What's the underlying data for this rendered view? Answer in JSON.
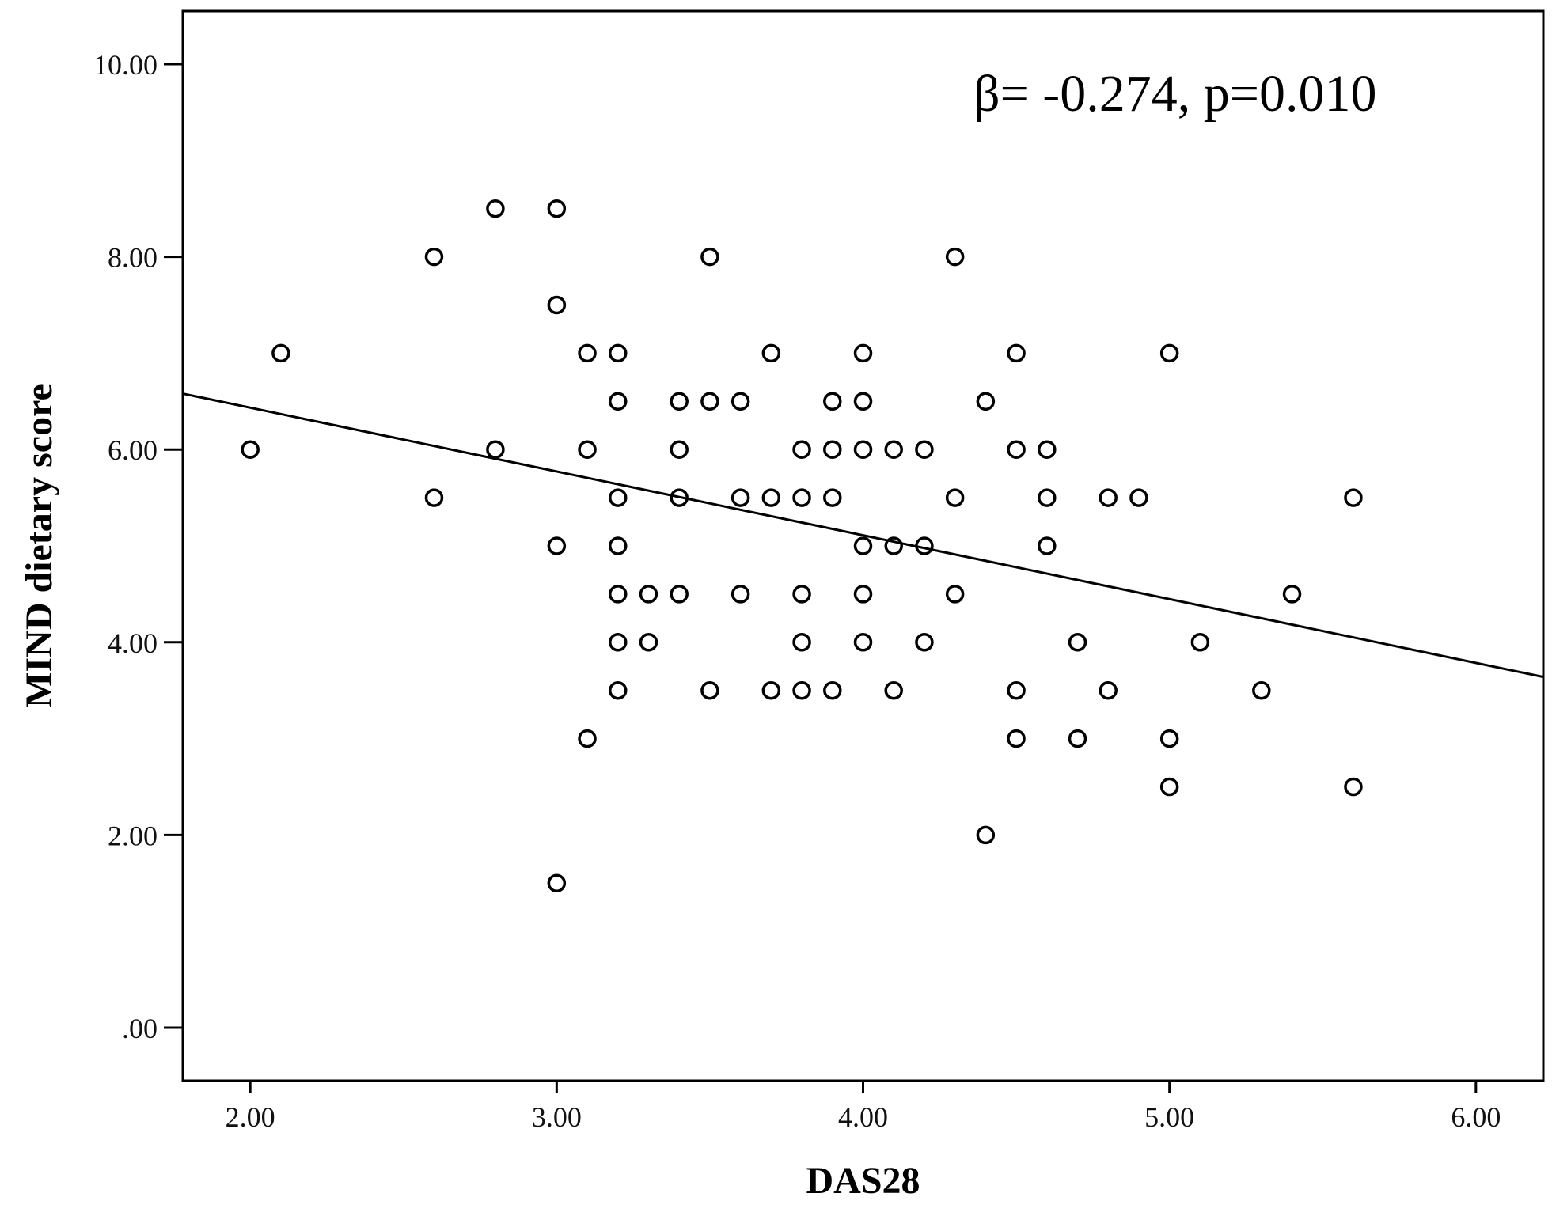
{
  "chart_data": {
    "type": "scatter",
    "title": "",
    "xlabel": "DAS28",
    "ylabel": "MIND dietary score",
    "xlim": [
      1.78,
      6.22
    ],
    "ylim": [
      -0.55,
      10.55
    ],
    "x_ticks": [
      2.0,
      3.0,
      4.0,
      5.0,
      6.0
    ],
    "x_tick_labels": [
      "2.00",
      "3.00",
      "4.00",
      "5.00",
      "6.00"
    ],
    "y_ticks": [
      0,
      2,
      4,
      6,
      8,
      10
    ],
    "y_tick_labels": [
      ".00",
      "2.00",
      "4.00",
      "6.00",
      "8.00",
      "10.00"
    ],
    "grid": false,
    "legend": "none",
    "annotation": "β= -0.274, p=0.010",
    "series": [
      {
        "marker": "open-circle",
        "points": [
          [
            2.0,
            6.0
          ],
          [
            2.1,
            7.0
          ],
          [
            2.6,
            8.0
          ],
          [
            2.6,
            5.5
          ],
          [
            2.8,
            8.5
          ],
          [
            2.8,
            6.0
          ],
          [
            3.0,
            8.5
          ],
          [
            3.0,
            7.5
          ],
          [
            3.0,
            5.0
          ],
          [
            3.0,
            1.5
          ],
          [
            3.1,
            7.0
          ],
          [
            3.1,
            6.0
          ],
          [
            3.1,
            3.0
          ],
          [
            3.2,
            7.0
          ],
          [
            3.2,
            6.5
          ],
          [
            3.2,
            5.5
          ],
          [
            3.2,
            5.0
          ],
          [
            3.2,
            4.5
          ],
          [
            3.2,
            4.0
          ],
          [
            3.2,
            3.5
          ],
          [
            3.3,
            4.5
          ],
          [
            3.3,
            4.0
          ],
          [
            3.4,
            6.5
          ],
          [
            3.4,
            6.0
          ],
          [
            3.4,
            5.5
          ],
          [
            3.4,
            4.5
          ],
          [
            3.5,
            8.0
          ],
          [
            3.5,
            6.5
          ],
          [
            3.5,
            3.5
          ],
          [
            3.6,
            6.5
          ],
          [
            3.6,
            5.5
          ],
          [
            3.6,
            4.5
          ],
          [
            3.7,
            7.0
          ],
          [
            3.7,
            5.5
          ],
          [
            3.7,
            3.5
          ],
          [
            3.8,
            6.0
          ],
          [
            3.8,
            5.5
          ],
          [
            3.8,
            4.5
          ],
          [
            3.8,
            4.0
          ],
          [
            3.8,
            3.5
          ],
          [
            3.9,
            6.5
          ],
          [
            3.9,
            6.0
          ],
          [
            3.9,
            5.5
          ],
          [
            3.9,
            3.5
          ],
          [
            4.0,
            7.0
          ],
          [
            4.0,
            6.5
          ],
          [
            4.0,
            6.0
          ],
          [
            4.0,
            5.0
          ],
          [
            4.0,
            4.5
          ],
          [
            4.0,
            4.0
          ],
          [
            4.1,
            6.0
          ],
          [
            4.1,
            5.0
          ],
          [
            4.1,
            3.5
          ],
          [
            4.2,
            6.0
          ],
          [
            4.2,
            5.0
          ],
          [
            4.2,
            4.0
          ],
          [
            4.3,
            8.0
          ],
          [
            4.3,
            5.5
          ],
          [
            4.3,
            4.5
          ],
          [
            4.4,
            6.5
          ],
          [
            4.4,
            2.0
          ],
          [
            4.5,
            7.0
          ],
          [
            4.5,
            6.0
          ],
          [
            4.5,
            3.5
          ],
          [
            4.5,
            3.0
          ],
          [
            4.6,
            6.0
          ],
          [
            4.6,
            5.5
          ],
          [
            4.6,
            5.0
          ],
          [
            4.7,
            4.0
          ],
          [
            4.7,
            3.0
          ],
          [
            4.8,
            5.5
          ],
          [
            4.8,
            3.5
          ],
          [
            4.9,
            5.5
          ],
          [
            5.0,
            7.0
          ],
          [
            5.0,
            3.0
          ],
          [
            5.0,
            2.5
          ],
          [
            5.1,
            4.0
          ],
          [
            5.3,
            3.5
          ],
          [
            5.4,
            4.5
          ],
          [
            5.6,
            5.5
          ],
          [
            5.6,
            2.5
          ]
        ]
      }
    ],
    "fit_line": {
      "type": "linear",
      "x": [
        1.78,
        6.22
      ],
      "y": [
        6.58,
        3.64
      ]
    }
  }
}
